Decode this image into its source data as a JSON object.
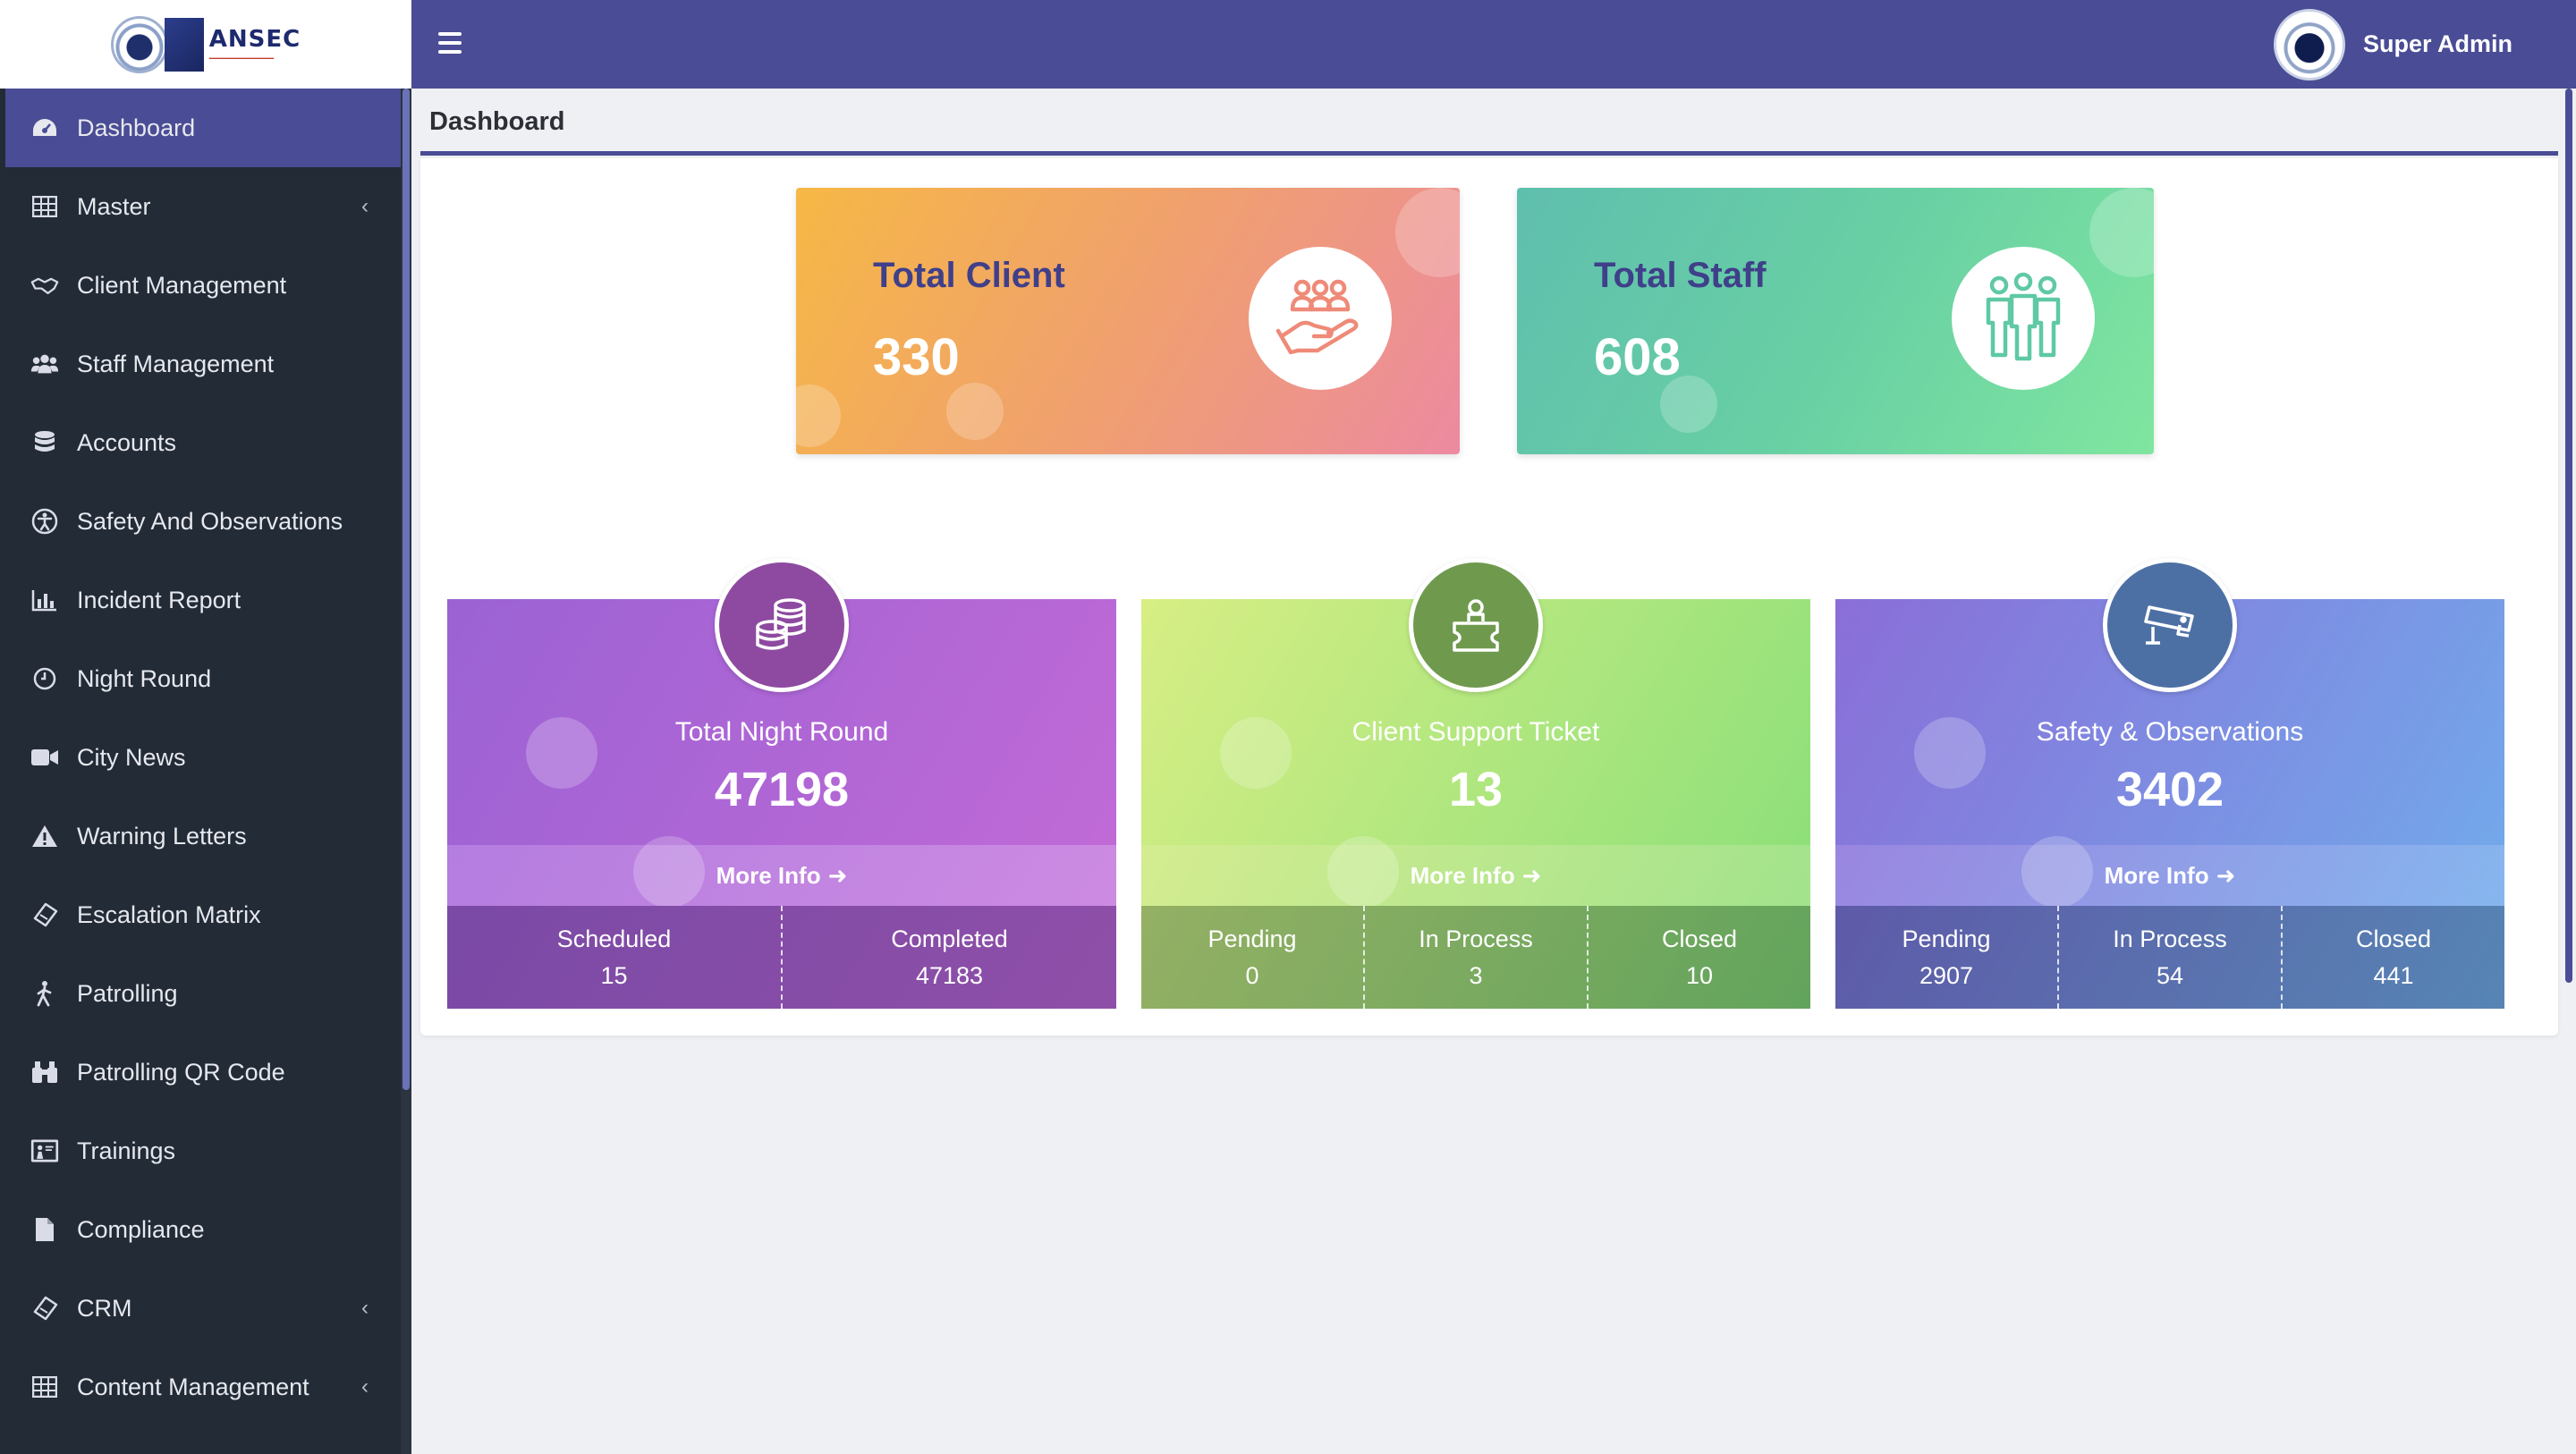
{
  "brand": {
    "name": "ANSEC"
  },
  "sidebar": {
    "items": [
      {
        "label": "Dashboard",
        "icon": "dashboard-icon",
        "active": true
      },
      {
        "label": "Master",
        "icon": "table-icon",
        "has_submenu": true
      },
      {
        "label": "Client Management",
        "icon": "handshake-icon"
      },
      {
        "label": "Staff Management",
        "icon": "users-icon"
      },
      {
        "label": "Accounts",
        "icon": "database-icon"
      },
      {
        "label": "Safety And Observations",
        "icon": "accessibility-icon"
      },
      {
        "label": "Incident Report",
        "icon": "bar-chart-icon"
      },
      {
        "label": "Night Round",
        "icon": "clock-icon"
      },
      {
        "label": "City News",
        "icon": "video-camera-icon"
      },
      {
        "label": "Warning Letters",
        "icon": "warning-icon"
      },
      {
        "label": "Escalation Matrix",
        "icon": "ticket-icon"
      },
      {
        "label": "Patrolling",
        "icon": "walking-icon"
      },
      {
        "label": "Patrolling QR Code",
        "icon": "binoculars-icon"
      },
      {
        "label": "Trainings",
        "icon": "presentation-icon"
      },
      {
        "label": "Compliance",
        "icon": "file-icon"
      },
      {
        "label": "CRM",
        "icon": "ticket-icon",
        "has_submenu": true
      },
      {
        "label": "Content Management",
        "icon": "table-icon",
        "has_submenu": true
      }
    ]
  },
  "topbar": {
    "user_name": "Super Admin"
  },
  "page": {
    "title": "Dashboard"
  },
  "stats": {
    "client": {
      "title": "Total Client",
      "value": "330",
      "icon": "hand-users-icon"
    },
    "staff": {
      "title": "Total Staff",
      "value": "608",
      "icon": "group-icon"
    }
  },
  "cards": {
    "night_round": {
      "label": "Total Night Round",
      "value": "47198",
      "more": "More Info",
      "icon": "coins-icon",
      "cols": [
        {
          "label": "Scheduled",
          "value": "15"
        },
        {
          "label": "Completed",
          "value": "47183"
        }
      ]
    },
    "ticket": {
      "label": "Client Support Ticket",
      "value": "13",
      "more": "More Info",
      "icon": "support-person-icon",
      "cols": [
        {
          "label": "Pending",
          "value": "0"
        },
        {
          "label": "In Process",
          "value": "3"
        },
        {
          "label": "Closed",
          "value": "10"
        }
      ]
    },
    "safety": {
      "label": "Safety & Observations",
      "value": "3402",
      "more": "More Info",
      "icon": "cctv-camera-icon",
      "cols": [
        {
          "label": "Pending",
          "value": "2907"
        },
        {
          "label": "In Process",
          "value": "54"
        },
        {
          "label": "Closed",
          "value": "441"
        }
      ]
    }
  },
  "colors": {
    "accent": "#4a4c95",
    "sidebar_bg": "#222b36"
  }
}
